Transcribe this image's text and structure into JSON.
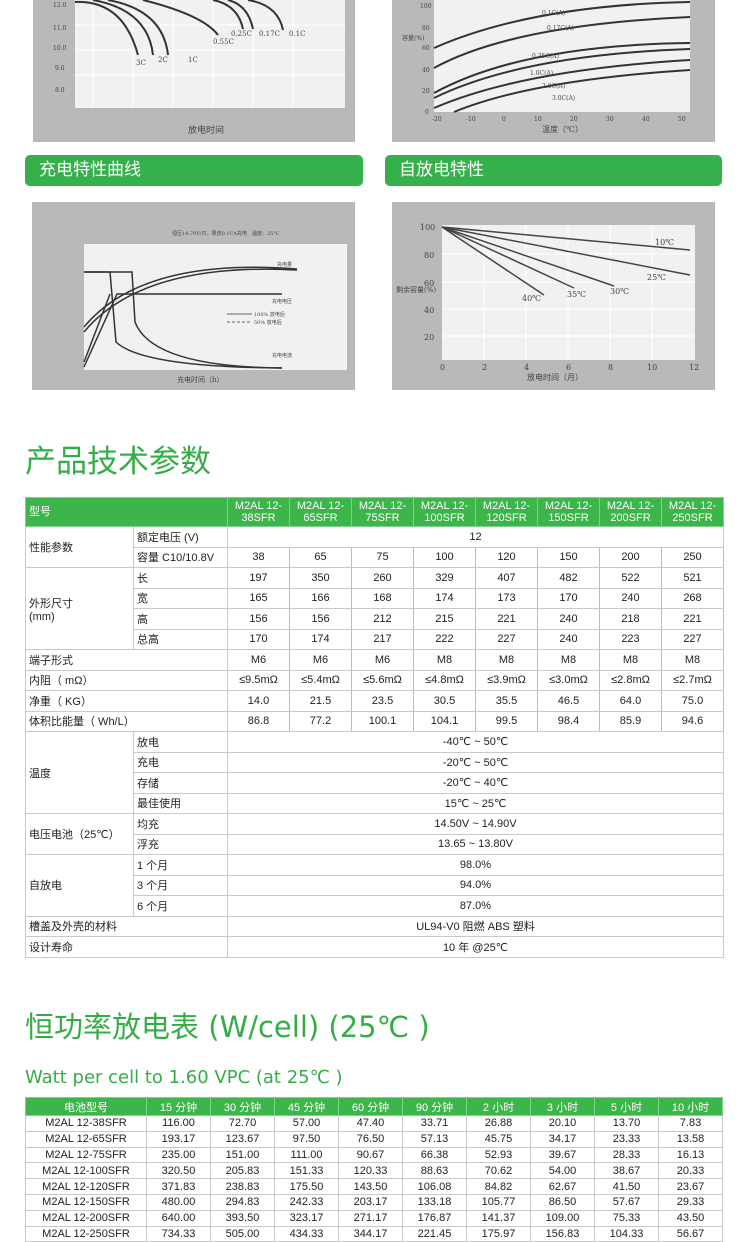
{
  "charts": {
    "discharge": {
      "xlabel": "放电时间",
      "curves": [
        "3C",
        "2C",
        "1C",
        "0.55C",
        "0.25C",
        "0.17C",
        "0.1C"
      ],
      "yticks": [
        "12.0",
        "11.0",
        "10.0",
        "9.0",
        "8.0"
      ]
    },
    "temperature": {
      "xlabel": "温度（℃）",
      "ylabel": "容量(%)",
      "curves": [
        "0.1C(A)",
        "0.17C(A)",
        "0.35C(A)",
        "1.0C(A)",
        "2.0C(A)",
        "3.0C(A)"
      ],
      "xticks": [
        "-20",
        "-10",
        "0",
        "10",
        "20",
        "30",
        "40",
        "50"
      ],
      "yticks": [
        "100",
        "80",
        "60",
        "40",
        "20",
        "0"
      ]
    },
    "charge": {
      "xlabel": "充电时间（h）",
      "note": "恒压14.70V/只，限流0.1CA充电　温度：25°C",
      "curves": [
        "充电量",
        "充电电压",
        "充电电流"
      ],
      "legend": [
        "100% 放电后",
        "50% 放电后"
      ],
      "xticks": [
        "0",
        "4",
        "8",
        "12",
        "16",
        "20",
        "24",
        "28",
        "32",
        "36",
        "40"
      ]
    },
    "self_discharge": {
      "xlabel": "放电时间（月）",
      "ylabel": "剩余容量(%)",
      "curves": [
        "10℃",
        "25℃",
        "30℃",
        "35℃",
        "40℃"
      ],
      "xticks": [
        "0",
        "2",
        "4",
        "6",
        "8",
        "10",
        "12"
      ],
      "yticks": [
        "100",
        "80",
        "60",
        "40",
        "20"
      ]
    }
  },
  "section_bars": {
    "charge": "充电特性曲线",
    "self_discharge": "自放电特性"
  },
  "spec_title": "产品技术参数",
  "spec": {
    "header_label": "型号",
    "models": [
      "M2AL 12-\n38SFR",
      "M2AL 12-\n65SFR",
      "M2AL 12-\n75SFR",
      "M2AL 12-\n100SFR",
      "M2AL 12-\n120SFR",
      "M2AL 12-\n150SFR",
      "M2AL 12-\n200SFR",
      "M2AL 12-\n250SFR"
    ],
    "groups": [
      {
        "label": "性能参数",
        "rows": [
          {
            "sub": "额定电压 (V)",
            "merged": "12"
          },
          {
            "sub": "容量 C10/10.8V",
            "values": [
              "38",
              "65",
              "75",
              "100",
              "120",
              "150",
              "200",
              "250"
            ]
          }
        ]
      },
      {
        "label": "外形尺寸\n(mm)",
        "rows": [
          {
            "sub": "长",
            "values": [
              "197",
              "350",
              "260",
              "329",
              "407",
              "482",
              "522",
              "521"
            ]
          },
          {
            "sub": "宽",
            "values": [
              "165",
              "166",
              "168",
              "174",
              "173",
              "170",
              "240",
              "268"
            ]
          },
          {
            "sub": "高",
            "values": [
              "156",
              "156",
              "212",
              "215",
              "221",
              "240",
              "218",
              "221"
            ]
          },
          {
            "sub": "总高",
            "values": [
              "170",
              "174",
              "217",
              "222",
              "227",
              "240",
              "223",
              "227"
            ]
          }
        ]
      },
      {
        "label": "端子形式",
        "rows": [
          {
            "values": [
              "M6",
              "M6",
              "M6",
              "M8",
              "M8",
              "M8",
              "M8",
              "M8"
            ]
          }
        ]
      },
      {
        "label": "内阻（ mΩ）",
        "rows": [
          {
            "values": [
              "≤9.5mΩ",
              "≤5.4mΩ",
              "≤5.6mΩ",
              "≤4.8mΩ",
              "≤3.9mΩ",
              "≤3.0mΩ",
              "≤2.8mΩ",
              "≤2.7mΩ"
            ]
          }
        ]
      },
      {
        "label": "净重（ KG）",
        "rows": [
          {
            "values": [
              "14.0",
              "21.5",
              "23.5",
              "30.5",
              "35.5",
              "46.5",
              "64.0",
              "75.0"
            ]
          }
        ]
      },
      {
        "label": "体积比能量（ Wh/L）",
        "rows": [
          {
            "values": [
              "86.8",
              "77.2",
              "100.1",
              "104.1",
              "99.5",
              "98.4",
              "85.9",
              "94.6"
            ]
          }
        ]
      },
      {
        "label": "温度",
        "rows": [
          {
            "sub": "放电",
            "merged": "-40℃ ~ 50℃"
          },
          {
            "sub": "充电",
            "merged": "-20℃ ~ 50℃"
          },
          {
            "sub": "存储",
            "merged": "-20℃ ~ 40℃"
          },
          {
            "sub": "最佳使用",
            "merged": "15℃ ~ 25℃"
          }
        ]
      },
      {
        "label": "电压电池（25℃）",
        "rows": [
          {
            "sub": "均充",
            "merged": "14.50V ~ 14.90V"
          },
          {
            "sub": "浮充",
            "merged": "13.65 ~ 13.80V"
          }
        ]
      },
      {
        "label": "自放电",
        "rows": [
          {
            "sub": "1 个月",
            "merged": "98.0%"
          },
          {
            "sub": "3 个月",
            "merged": "94.0%"
          },
          {
            "sub": "6 个月",
            "merged": "87.0%"
          }
        ]
      },
      {
        "label": "槽盖及外壳的材料",
        "rows": [
          {
            "merged": "UL94-V0 阻燃 ABS 塑料"
          }
        ]
      },
      {
        "label": "设计寿命",
        "rows": [
          {
            "merged": "10 年 @25℃"
          }
        ]
      }
    ]
  },
  "power_title": "恒功率放电表 (W/cell)  (25℃ )",
  "power_subtitle": "Watt per cell to 1.60 VPC (at 25℃ )",
  "power": {
    "headers": [
      "电池型号",
      "15 分钟",
      "30 分钟",
      "45 分钟",
      "60 分钟",
      "90 分钟",
      "2 小时",
      "3 小时",
      "5 小时",
      "10 小时"
    ],
    "rows": [
      [
        "M2AL 12-38SFR",
        "116.00",
        "72.70",
        "57.00",
        "47.40",
        "33.71",
        "26.88",
        "20.10",
        "13.70",
        "7.83"
      ],
      [
        "M2AL 12-65SFR",
        "193.17",
        "123.67",
        "97.50",
        "76.50",
        "57.13",
        "45.75",
        "34.17",
        "23.33",
        "13.58"
      ],
      [
        "M2AL 12-75SFR",
        "235.00",
        "151.00",
        "111.00",
        "90.67",
        "66.38",
        "52.93",
        "39.67",
        "28.33",
        "16.13"
      ],
      [
        "M2AL 12-100SFR",
        "320.50",
        "205.83",
        "151.33",
        "120.33",
        "88.63",
        "70.62",
        "54.00",
        "38.67",
        "20.33"
      ],
      [
        "M2AL 12-120SFR",
        "371.83",
        "238.83",
        "175.50",
        "143.50",
        "106.08",
        "84.82",
        "62.67",
        "41.50",
        "23.67"
      ],
      [
        "M2AL 12-150SFR",
        "480.00",
        "294.83",
        "242.33",
        "203.17",
        "133.18",
        "105.77",
        "86.50",
        "57.67",
        "29.33"
      ],
      [
        "M2AL 12-200SFR",
        "640.00",
        "393.50",
        "323.17",
        "271.17",
        "176.87",
        "141.37",
        "109.00",
        "75.33",
        "43.50"
      ],
      [
        "M2AL 12-250SFR",
        "734.33",
        "505.00",
        "434.33",
        "344.17",
        "221.45",
        "175.97",
        "156.83",
        "104.33",
        "56.67"
      ]
    ]
  },
  "colors": {
    "accent": "#36b04a",
    "panel": "#b9b9b9"
  }
}
